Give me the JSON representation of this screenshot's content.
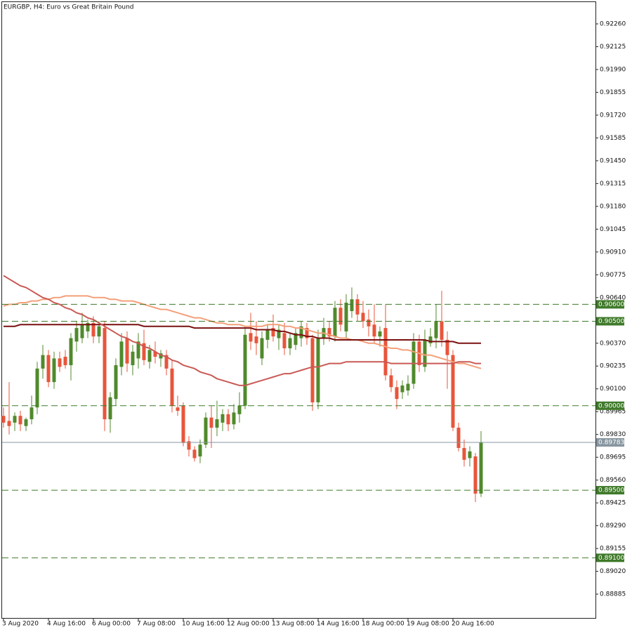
{
  "chart_data": {
    "type": "candlestick",
    "title": "EURGBP, H4:  Euro vs Great Britain Pound",
    "categories": [
      "3 Aug 2020",
      null,
      null,
      null,
      null,
      null,
      null,
      null,
      "4 Aug 16:00",
      null,
      null,
      null,
      null,
      null,
      null,
      null,
      "6 Aug 00:00",
      null,
      null,
      null,
      null,
      null,
      null,
      null,
      "7 Aug 08:00",
      null,
      null,
      null,
      null,
      null,
      null,
      null,
      "10 Aug 16:00",
      null,
      null,
      null,
      null,
      null,
      null,
      null,
      "12 Aug 00:00",
      null,
      null,
      null,
      null,
      null,
      null,
      null,
      "13 Aug 08:00",
      null,
      null,
      null,
      null,
      null,
      null,
      null,
      "14 Aug 16:00",
      null,
      null,
      null,
      null,
      null,
      null,
      null,
      "18 Aug 00:00",
      null,
      null,
      null,
      null,
      null,
      null,
      null,
      "19 Aug 08:00",
      null,
      null,
      null,
      null,
      null,
      null,
      null,
      "20 Aug 16:00",
      null,
      null,
      null,
      null,
      null
    ],
    "candles": {
      "up_color": "#508a2c",
      "down_color": "#e8553b",
      "open": [
        0.8994,
        0.8991,
        0.899,
        0.8994,
        0.8988,
        0.8992,
        0.8999,
        0.9022,
        0.903,
        0.9014,
        0.9028,
        0.9029,
        0.9024,
        0.9038,
        0.904,
        0.9044,
        0.9049,
        0.9041,
        0.9046,
        0.8992,
        0.9004,
        0.9023,
        0.904,
        0.9024,
        0.9028,
        0.9037,
        0.9026,
        0.9032,
        0.9028,
        0.903,
        0.9022,
        0.8999,
        0.9,
        0.8979,
        0.8974,
        0.897,
        0.8977,
        0.8993,
        0.8987,
        0.899,
        0.8995,
        0.8989,
        0.8995,
        0.9,
        0.9043,
        0.9041,
        0.9028,
        0.9039,
        0.9046,
        0.904,
        0.9043,
        0.9034,
        0.9036,
        0.904,
        0.9046,
        0.904,
        0.9002,
        0.904,
        0.9046,
        0.9041,
        0.9058,
        0.9044,
        0.9056,
        0.9063,
        0.9055,
        0.9051,
        0.9048,
        0.9041,
        0.9046,
        0.9018,
        0.9011,
        0.9008,
        0.9009,
        0.9013,
        0.9038,
        0.9023,
        0.9037,
        0.904,
        0.905,
        0.9039,
        0.903,
        0.8987,
        0.8975,
        0.8969,
        0.897,
        0.8948
      ],
      "high": [
        0.8999,
        0.9014,
        0.8996,
        0.8997,
        0.8993,
        0.9006,
        0.9026,
        0.9036,
        0.9033,
        0.9032,
        0.9032,
        0.9033,
        0.9043,
        0.905,
        0.9055,
        0.9051,
        0.9053,
        0.905,
        0.905,
        0.9008,
        0.9028,
        0.9043,
        0.9044,
        0.9036,
        0.9043,
        0.9045,
        0.9036,
        0.9038,
        0.9033,
        0.9033,
        0.9027,
        0.9006,
        0.9002,
        0.8982,
        0.8976,
        0.898,
        0.8996,
        0.9,
        0.9003,
        0.8998,
        0.8998,
        0.9001,
        0.9008,
        0.9047,
        0.9055,
        0.905,
        0.9044,
        0.9048,
        0.9054,
        0.9048,
        0.9049,
        0.9043,
        0.9046,
        0.905,
        0.9049,
        0.9042,
        0.9045,
        0.9052,
        0.905,
        0.9062,
        0.9063,
        0.9066,
        0.907,
        0.9066,
        0.9062,
        0.9057,
        0.906,
        0.9047,
        0.906,
        0.9022,
        0.9015,
        0.9015,
        0.9018,
        0.9043,
        0.9042,
        0.9045,
        0.9046,
        0.906,
        0.9068,
        0.9044,
        0.9033,
        0.899,
        0.898,
        0.8976,
        0.8972,
        0.8985
      ],
      "low": [
        0.8987,
        0.8983,
        0.8985,
        0.8985,
        0.8985,
        0.8989,
        0.8995,
        0.9016,
        0.9011,
        0.901,
        0.902,
        0.9022,
        0.9015,
        0.9032,
        0.9037,
        0.904,
        0.9037,
        0.9037,
        0.8985,
        0.8984,
        0.9,
        0.9018,
        0.902,
        0.9018,
        0.9022,
        0.9024,
        0.9022,
        0.9025,
        0.9023,
        0.9018,
        0.8996,
        0.8994,
        0.8976,
        0.897,
        0.8967,
        0.8966,
        0.8975,
        0.8975,
        0.8982,
        0.8985,
        0.8985,
        0.8986,
        0.899,
        0.8998,
        0.9033,
        0.903,
        0.9024,
        0.9034,
        0.9038,
        0.9033,
        0.903,
        0.903,
        0.9033,
        0.9035,
        0.9036,
        0.8997,
        0.8998,
        0.9036,
        0.9038,
        0.9038,
        0.9044,
        0.904,
        0.9052,
        0.905,
        0.9046,
        0.9041,
        0.9037,
        0.9035,
        0.9015,
        0.9008,
        0.8998,
        0.9004,
        0.9006,
        0.901,
        0.902,
        0.902,
        0.9035,
        0.9034,
        0.9035,
        0.901,
        0.8985,
        0.8973,
        0.8964,
        0.8964,
        0.8943,
        0.8946
      ],
      "close": [
        0.899,
        0.8988,
        0.8994,
        0.8989,
        0.8992,
        0.8999,
        0.9022,
        0.903,
        0.9014,
        0.9028,
        0.9023,
        0.9024,
        0.904,
        0.9046,
        0.9048,
        0.9049,
        0.9041,
        0.9047,
        0.8992,
        0.9005,
        0.9024,
        0.9038,
        0.9025,
        0.9032,
        0.9038,
        0.9027,
        0.9033,
        0.9029,
        0.9031,
        0.9022,
        0.9,
        0.8997,
        0.8978,
        0.8974,
        0.8969,
        0.8977,
        0.8993,
        0.8987,
        0.8992,
        0.8995,
        0.8989,
        0.8996,
        0.9,
        0.9042,
        0.9038,
        0.9037,
        0.904,
        0.9045,
        0.9041,
        0.9045,
        0.9034,
        0.904,
        0.9043,
        0.9047,
        0.904,
        0.9002,
        0.904,
        0.9046,
        0.9041,
        0.9058,
        0.9048,
        0.9061,
        0.9063,
        0.9054,
        0.905,
        0.9047,
        0.9041,
        0.9044,
        0.9018,
        0.9011,
        0.9004,
        0.9012,
        0.9013,
        0.9038,
        0.9024,
        0.9039,
        0.9041,
        0.905,
        0.9039,
        0.903,
        0.8987,
        0.8975,
        0.8968,
        0.8973,
        0.8948,
        0.89783
      ]
    },
    "moving_averages": [
      {
        "color": "#f4a07a",
        "values": [
          0.9059,
          0.906,
          0.906,
          0.9061,
          0.9061,
          0.9062,
          0.9062,
          0.9063,
          0.9063,
          0.9064,
          0.9064,
          0.9065,
          0.9065,
          0.9065,
          0.9065,
          0.9065,
          0.9064,
          0.9064,
          0.9064,
          0.9063,
          0.9063,
          0.9062,
          0.9062,
          0.9062,
          0.9061,
          0.906,
          0.9059,
          0.9058,
          0.9057,
          0.9057,
          0.9056,
          0.9055,
          0.9054,
          0.9053,
          0.9052,
          0.9052,
          0.9051,
          0.905,
          0.9049,
          0.9049,
          0.9048,
          0.9048,
          0.9048,
          0.9047,
          0.9047,
          0.9047,
          0.9047,
          0.9048,
          0.9048,
          0.9048,
          0.9047,
          0.9047,
          0.9046,
          0.9046,
          0.9045,
          0.9044,
          0.9043,
          0.9043,
          0.9042,
          0.9041,
          0.904,
          0.904,
          0.9039,
          0.9039,
          0.9038,
          0.9037,
          0.9037,
          0.9036,
          0.9035,
          0.9034,
          0.9034,
          0.9033,
          0.9033,
          0.9032,
          0.9031,
          0.903,
          0.903,
          0.9029,
          0.9028,
          0.9027,
          0.9026,
          0.9025,
          0.9025,
          0.9024,
          0.9023,
          0.9022
        ]
      },
      {
        "color": "#7a1010",
        "values": [
          0.9047,
          0.9047,
          0.9047,
          0.9048,
          0.9048,
          0.9048,
          0.9048,
          0.9048,
          0.9048,
          0.9048,
          0.9048,
          0.9048,
          0.9048,
          0.9048,
          0.9048,
          0.9048,
          0.9048,
          0.9048,
          0.9048,
          0.9048,
          0.9048,
          0.9048,
          0.9048,
          0.9048,
          0.9048,
          0.9047,
          0.9047,
          0.9047,
          0.9047,
          0.9047,
          0.9047,
          0.9047,
          0.9047,
          0.9047,
          0.9046,
          0.9046,
          0.9046,
          0.9046,
          0.9046,
          0.9046,
          0.9046,
          0.9046,
          0.9046,
          0.9046,
          0.9046,
          0.9045,
          0.9045,
          0.9045,
          0.9045,
          0.9044,
          0.9044,
          0.9043,
          0.9042,
          0.9042,
          0.9041,
          0.9041,
          0.904,
          0.904,
          0.904,
          0.9039,
          0.9039,
          0.9039,
          0.9039,
          0.9039,
          0.9039,
          0.9039,
          0.9039,
          0.9039,
          0.9039,
          0.9039,
          0.9039,
          0.9039,
          0.9039,
          0.9039,
          0.9039,
          0.9039,
          0.9038,
          0.9038,
          0.9038,
          0.9038,
          0.9038,
          0.9037,
          0.9037,
          0.9037,
          0.9037,
          0.9037
        ]
      },
      {
        "color": "#c95a55",
        "values": [
          0.9077,
          0.9075,
          0.9073,
          0.9071,
          0.907,
          0.9068,
          0.9066,
          0.9064,
          0.9063,
          0.9061,
          0.906,
          0.9058,
          0.9057,
          0.9055,
          0.9054,
          0.9052,
          0.9051,
          0.9049,
          0.9047,
          0.9045,
          0.9043,
          0.9041,
          0.904,
          0.9038,
          0.9037,
          0.9035,
          0.9034,
          0.9032,
          0.903,
          0.9029,
          0.9027,
          0.9026,
          0.9024,
          0.9023,
          0.9022,
          0.902,
          0.9019,
          0.9018,
          0.9016,
          0.9015,
          0.9014,
          0.9013,
          0.9012,
          0.9012,
          0.9013,
          0.9014,
          0.9015,
          0.9016,
          0.9017,
          0.9018,
          0.9019,
          0.9019,
          0.902,
          0.9021,
          0.9022,
          0.9023,
          0.9023,
          0.9024,
          0.9025,
          0.9025,
          0.9025,
          0.9026,
          0.9026,
          0.9026,
          0.9026,
          0.9026,
          0.9026,
          0.9026,
          0.9026,
          0.9025,
          0.9025,
          0.9025,
          0.9025,
          0.9025,
          0.9025,
          0.9025,
          0.9025,
          0.9025,
          0.9025,
          0.9025,
          0.9025,
          0.9026,
          0.9026,
          0.9026,
          0.9025,
          0.9025
        ]
      }
    ],
    "levels": [
      {
        "value": 0.906,
        "label": "0.90600"
      },
      {
        "value": 0.905,
        "label": "0.90500"
      },
      {
        "value": 0.9,
        "label": "0.90000"
      },
      {
        "value": 0.895,
        "label": "0.89500"
      },
      {
        "value": 0.891,
        "label": "0.89100"
      }
    ],
    "level_color": "#3f7a2a",
    "last_price": 0.89783,
    "last_price_color": "#8796a0",
    "ylim": [
      0.88744,
      0.92393
    ],
    "yticks": [
      {
        "value": 0.9226,
        "label": "0.92260"
      },
      0.92125,
      {
        "value": 0.9199,
        "label": "0.91990"
      },
      0.91855,
      {
        "value": 0.9172,
        "label": "0.91720"
      },
      0.91585,
      {
        "value": 0.9145,
        "label": "0.91450"
      },
      0.91315,
      {
        "value": 0.9118,
        "label": "0.91180"
      },
      0.91045,
      {
        "value": 0.9091,
        "label": "0.90910"
      },
      0.90775,
      {
        "value": 0.9064,
        "label": "0.90640"
      },
      {
        "value": 0.9037,
        "label": "0.90370"
      },
      0.90235,
      {
        "value": 0.901,
        "label": "0.90100"
      },
      0.89965,
      {
        "value": 0.8983,
        "label": "0.89830"
      },
      0.89695,
      {
        "value": 0.8956,
        "label": "0.89560"
      },
      0.89425,
      {
        "value": 0.8929,
        "label": "0.89290"
      },
      0.89155,
      {
        "value": 0.8902,
        "label": "0.89020"
      },
      0.88885
    ]
  }
}
